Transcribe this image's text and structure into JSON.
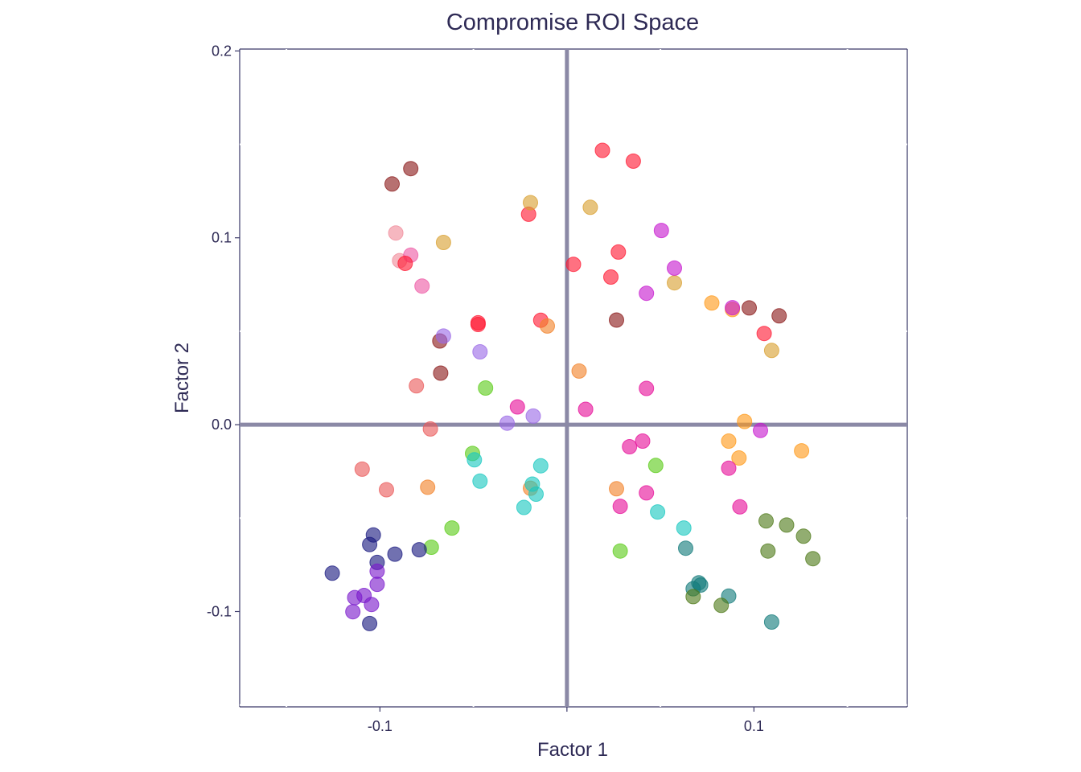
{
  "chart_data": {
    "type": "scatter",
    "title": "Compromise ROI Space",
    "xlabel": "Factor 1",
    "ylabel": "Factor 2",
    "xlim": [
      -0.175,
      0.182
    ],
    "ylim": [
      -0.151,
      0.201
    ],
    "x_ticks": [
      -0.1,
      0.0,
      0.1
    ],
    "x_tick_labels": [
      "-0.1",
      "0.0",
      "0.1"
    ],
    "y_ticks": [
      -0.1,
      0.0,
      0.1,
      0.2
    ],
    "y_tick_labels": [
      "-0.1",
      "0.0",
      "0.1",
      "0.2"
    ],
    "reference_lines": {
      "x": 0,
      "y": 0,
      "color": "#8b89a6"
    },
    "axis_color": "#3a3868",
    "grid": false,
    "legend": "none",
    "points": [
      {
        "x": -0.0935,
        "y": 0.1288,
        "color": "#8b1a1a"
      },
      {
        "x": -0.0835,
        "y": 0.137,
        "color": "#8b1a1a"
      },
      {
        "x": -0.068,
        "y": 0.0448,
        "color": "#8b1a1a"
      },
      {
        "x": -0.0675,
        "y": 0.0276,
        "color": "#8b1a1a"
      },
      {
        "x": 0.0265,
        "y": 0.056,
        "color": "#8b1a1a"
      },
      {
        "x": 0.0975,
        "y": 0.0625,
        "color": "#8b1a1a"
      },
      {
        "x": 0.1135,
        "y": 0.0582,
        "color": "#8b1a1a"
      },
      {
        "x": -0.0915,
        "y": 0.1026,
        "color": "#f08a9a"
      },
      {
        "x": -0.0895,
        "y": 0.0878,
        "color": "#f08a9a"
      },
      {
        "x": -0.0835,
        "y": 0.0907,
        "color": "#ee5aa5"
      },
      {
        "x": -0.0775,
        "y": 0.0742,
        "color": "#ee5aa5"
      },
      {
        "x": -0.0865,
        "y": 0.0863,
        "color": "#ff1a33"
      },
      {
        "x": -0.0475,
        "y": 0.0545,
        "color": "#ff1a33"
      },
      {
        "x": -0.0475,
        "y": 0.0536,
        "color": "#ff1a33"
      },
      {
        "x": -0.0205,
        "y": 0.1126,
        "color": "#ff1a33"
      },
      {
        "x": -0.014,
        "y": 0.0559,
        "color": "#ff1a33"
      },
      {
        "x": 0.0035,
        "y": 0.0858,
        "color": "#ff1a33"
      },
      {
        "x": 0.019,
        "y": 0.1468,
        "color": "#ff1a33"
      },
      {
        "x": 0.0355,
        "y": 0.141,
        "color": "#ff1a33"
      },
      {
        "x": 0.0235,
        "y": 0.079,
        "color": "#ff1a33"
      },
      {
        "x": 0.0275,
        "y": 0.0924,
        "color": "#ff1a33"
      },
      {
        "x": 0.1055,
        "y": 0.0488,
        "color": "#ff1a33"
      },
      {
        "x": -0.066,
        "y": 0.0975,
        "color": "#d9a030"
      },
      {
        "x": -0.0195,
        "y": 0.1188,
        "color": "#d9a030"
      },
      {
        "x": 0.0125,
        "y": 0.1163,
        "color": "#d9a030"
      },
      {
        "x": 0.0575,
        "y": 0.0759,
        "color": "#d9a030"
      },
      {
        "x": 0.1095,
        "y": 0.0397,
        "color": "#d9a030"
      },
      {
        "x": -0.0105,
        "y": 0.0528,
        "color": "#f2822a"
      },
      {
        "x": 0.0065,
        "y": 0.0287,
        "color": "#f2822a"
      },
      {
        "x": -0.0745,
        "y": -0.0335,
        "color": "#f2822a"
      },
      {
        "x": -0.0195,
        "y": -0.034,
        "color": "#f2822a"
      },
      {
        "x": 0.0265,
        "y": -0.0343,
        "color": "#f2822a"
      },
      {
        "x": -0.0805,
        "y": 0.0208,
        "color": "#ea5a5a"
      },
      {
        "x": -0.073,
        "y": -0.0023,
        "color": "#ea5a5a"
      },
      {
        "x": -0.1095,
        "y": -0.0238,
        "color": "#ea5a5a"
      },
      {
        "x": -0.0965,
        "y": -0.0348,
        "color": "#ea5a5a"
      },
      {
        "x": 0.0775,
        "y": 0.0651,
        "color": "#ff9a1a"
      },
      {
        "x": 0.0885,
        "y": 0.0616,
        "color": "#ff9a1a"
      },
      {
        "x": 0.095,
        "y": 0.0017,
        "color": "#ff9a1a"
      },
      {
        "x": 0.0865,
        "y": -0.0088,
        "color": "#ff9a1a"
      },
      {
        "x": 0.092,
        "y": -0.0178,
        "color": "#ff9a1a"
      },
      {
        "x": 0.1255,
        "y": -0.014,
        "color": "#ff9a1a"
      },
      {
        "x": -0.066,
        "y": 0.0474,
        "color": "#9b6ae6"
      },
      {
        "x": -0.0465,
        "y": 0.039,
        "color": "#9b6ae6"
      },
      {
        "x": -0.032,
        "y": 0.0008,
        "color": "#9b6ae6"
      },
      {
        "x": -0.018,
        "y": 0.0046,
        "color": "#9b6ae6"
      },
      {
        "x": 0.0505,
        "y": 0.1039,
        "color": "#c71acf"
      },
      {
        "x": 0.0575,
        "y": 0.0838,
        "color": "#c71acf"
      },
      {
        "x": 0.0425,
        "y": 0.0703,
        "color": "#c71acf"
      },
      {
        "x": 0.0885,
        "y": 0.0626,
        "color": "#c71acf"
      },
      {
        "x": 0.1035,
        "y": -0.0031,
        "color": "#c71acf"
      },
      {
        "x": -0.0265,
        "y": 0.0095,
        "color": "#e6109a"
      },
      {
        "x": 0.01,
        "y": 0.0082,
        "color": "#e6109a"
      },
      {
        "x": 0.0425,
        "y": 0.0194,
        "color": "#e6109a"
      },
      {
        "x": 0.0335,
        "y": -0.0118,
        "color": "#e6109a"
      },
      {
        "x": 0.0405,
        "y": -0.0088,
        "color": "#e6109a"
      },
      {
        "x": 0.0865,
        "y": -0.0233,
        "color": "#e6109a"
      },
      {
        "x": 0.0425,
        "y": -0.0365,
        "color": "#e6109a"
      },
      {
        "x": 0.0285,
        "y": -0.0437,
        "color": "#e6109a"
      },
      {
        "x": 0.0925,
        "y": -0.044,
        "color": "#e6109a"
      },
      {
        "x": -0.0435,
        "y": 0.0196,
        "color": "#5ccc1a"
      },
      {
        "x": -0.0505,
        "y": -0.0154,
        "color": "#5ccc1a"
      },
      {
        "x": 0.0475,
        "y": -0.0218,
        "color": "#5ccc1a"
      },
      {
        "x": -0.0615,
        "y": -0.0553,
        "color": "#5ccc1a"
      },
      {
        "x": -0.0725,
        "y": -0.0656,
        "color": "#5ccc1a"
      },
      {
        "x": 0.0285,
        "y": -0.0676,
        "color": "#5ccc1a"
      },
      {
        "x": -0.0495,
        "y": -0.0188,
        "color": "#1ac8c0"
      },
      {
        "x": -0.0465,
        "y": -0.0302,
        "color": "#1ac8c0"
      },
      {
        "x": -0.014,
        "y": -0.022,
        "color": "#1ac8c0"
      },
      {
        "x": -0.0185,
        "y": -0.0318,
        "color": "#1ac8c0"
      },
      {
        "x": -0.0165,
        "y": -0.0372,
        "color": "#1ac8c0"
      },
      {
        "x": -0.023,
        "y": -0.0443,
        "color": "#1ac8c0"
      },
      {
        "x": 0.0485,
        "y": -0.0467,
        "color": "#1ac8c0"
      },
      {
        "x": 0.0625,
        "y": -0.0553,
        "color": "#1ac8c0"
      },
      {
        "x": 0.0635,
        "y": -0.0661,
        "color": "#127a7a"
      },
      {
        "x": 0.0705,
        "y": -0.0846,
        "color": "#127a7a"
      },
      {
        "x": 0.0715,
        "y": -0.0858,
        "color": "#127a7a"
      },
      {
        "x": 0.0675,
        "y": -0.0878,
        "color": "#127a7a"
      },
      {
        "x": 0.0865,
        "y": -0.0917,
        "color": "#127a7a"
      },
      {
        "x": 0.1095,
        "y": -0.1056,
        "color": "#127a7a"
      },
      {
        "x": 0.1065,
        "y": -0.0515,
        "color": "#4f7a1a"
      },
      {
        "x": 0.1175,
        "y": -0.0537,
        "color": "#4f7a1a"
      },
      {
        "x": 0.1265,
        "y": -0.0597,
        "color": "#4f7a1a"
      },
      {
        "x": 0.1075,
        "y": -0.0676,
        "color": "#4f7a1a"
      },
      {
        "x": 0.1315,
        "y": -0.0717,
        "color": "#4f7a1a"
      },
      {
        "x": 0.0675,
        "y": -0.092,
        "color": "#4f7a1a"
      },
      {
        "x": 0.0825,
        "y": -0.0967,
        "color": "#4f7a1a"
      },
      {
        "x": -0.1035,
        "y": -0.059,
        "color": "#1a1a80"
      },
      {
        "x": -0.1055,
        "y": -0.0641,
        "color": "#1a1a80"
      },
      {
        "x": -0.092,
        "y": -0.0693,
        "color": "#1a1a80"
      },
      {
        "x": -0.079,
        "y": -0.0669,
        "color": "#1a1a80"
      },
      {
        "x": -0.1015,
        "y": -0.0737,
        "color": "#1a1a80"
      },
      {
        "x": -0.1255,
        "y": -0.0795,
        "color": "#1a1a80"
      },
      {
        "x": -0.1055,
        "y": -0.1064,
        "color": "#1a1a80"
      },
      {
        "x": -0.1015,
        "y": -0.0784,
        "color": "#7a1acc"
      },
      {
        "x": -0.1015,
        "y": -0.0854,
        "color": "#7a1acc"
      },
      {
        "x": -0.1135,
        "y": -0.0925,
        "color": "#7a1acc"
      },
      {
        "x": -0.1085,
        "y": -0.0914,
        "color": "#7a1acc"
      },
      {
        "x": -0.1045,
        "y": -0.0962,
        "color": "#7a1acc"
      },
      {
        "x": -0.1145,
        "y": -0.1001,
        "color": "#7a1acc"
      }
    ]
  }
}
